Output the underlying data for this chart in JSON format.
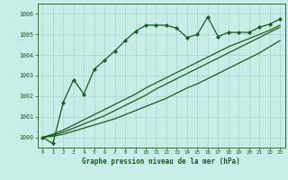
{
  "title": "Graphe pression niveau de la mer (hPa)",
  "bg_color": "#c8ece8",
  "grid_color": "#b0d8d0",
  "line_color": "#1a5c1a",
  "ylim": [
    999.5,
    1006.5
  ],
  "xlim": [
    -0.5,
    23.5
  ],
  "yticks": [
    1000,
    1001,
    1002,
    1003,
    1004,
    1005,
    1006
  ],
  "xticks": [
    0,
    1,
    2,
    3,
    4,
    5,
    6,
    7,
    8,
    9,
    10,
    11,
    12,
    13,
    14,
    15,
    16,
    17,
    18,
    19,
    20,
    21,
    22,
    23
  ],
  "series1_y": [
    1000.0,
    999.7,
    1001.7,
    1002.8,
    1002.1,
    1003.3,
    1003.75,
    1004.2,
    1004.7,
    1005.15,
    1005.45,
    1005.45,
    1005.45,
    1005.3,
    1004.85,
    1005.0,
    1005.85,
    1004.9,
    1005.1,
    1005.1,
    1005.1,
    1005.35,
    1005.5,
    1005.75
  ],
  "series2_y": [
    1000.0,
    1000.05,
    1000.15,
    1000.3,
    1000.45,
    1000.6,
    1000.75,
    1000.9,
    1001.1,
    1001.3,
    1001.5,
    1001.7,
    1001.9,
    1002.15,
    1002.4,
    1002.6,
    1002.85,
    1003.1,
    1003.35,
    1003.6,
    1003.85,
    1004.1,
    1004.4,
    1004.7
  ],
  "series3_y": [
    1000.0,
    1000.1,
    1000.25,
    1000.45,
    1000.65,
    1000.85,
    1001.05,
    1001.3,
    1001.55,
    1001.8,
    1002.05,
    1002.35,
    1002.6,
    1002.85,
    1003.1,
    1003.35,
    1003.6,
    1003.85,
    1004.1,
    1004.35,
    1004.6,
    1004.85,
    1005.1,
    1005.35
  ],
  "series4_y": [
    1000.0,
    1000.15,
    1000.35,
    1000.6,
    1000.85,
    1001.1,
    1001.35,
    1001.6,
    1001.85,
    1002.1,
    1002.4,
    1002.65,
    1002.9,
    1003.15,
    1003.4,
    1003.65,
    1003.9,
    1004.15,
    1004.4,
    1004.6,
    1004.8,
    1005.0,
    1005.2,
    1005.45
  ]
}
